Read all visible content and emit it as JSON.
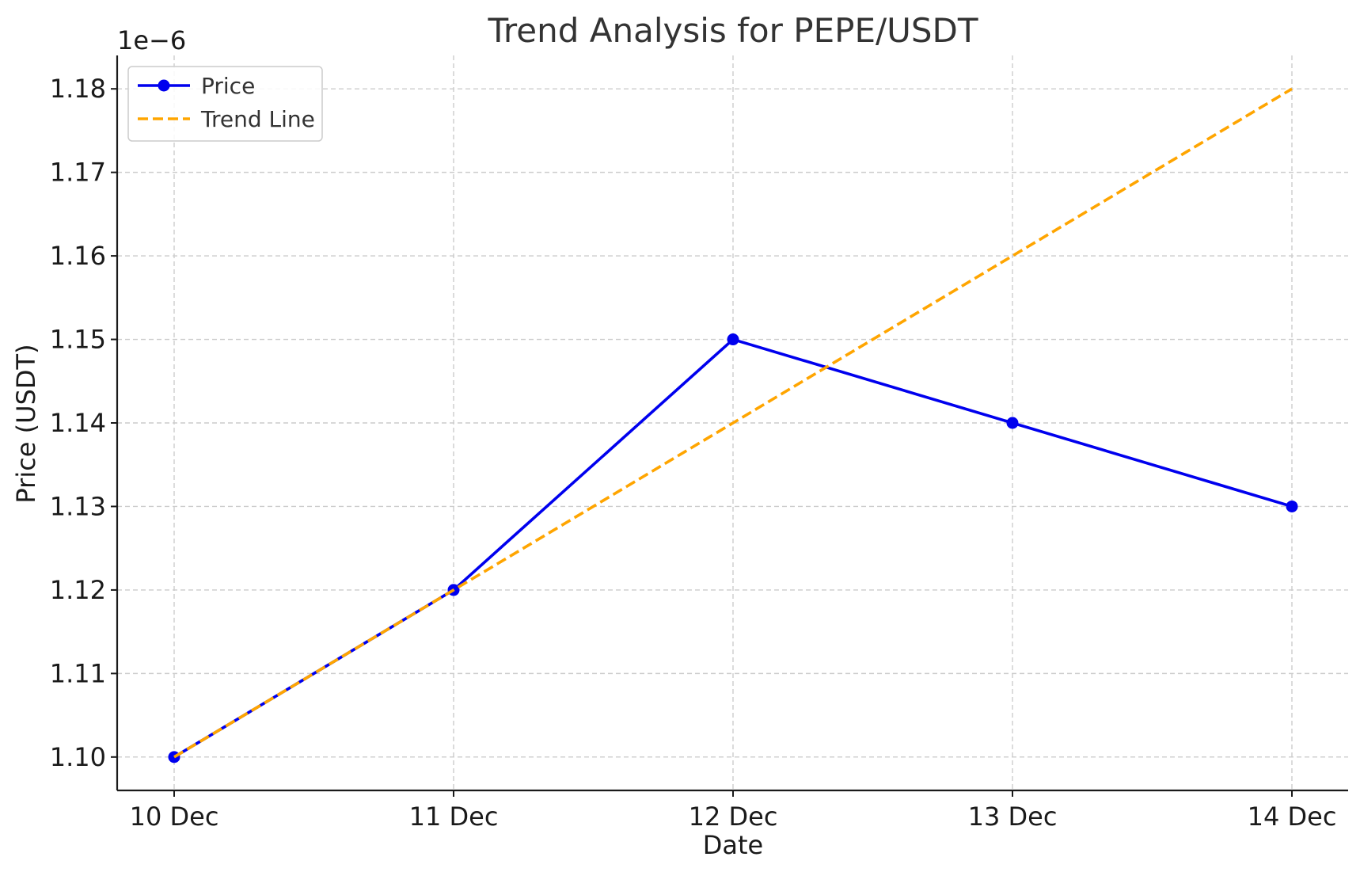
{
  "chart_data": {
    "type": "line",
    "title": "Trend Analysis for PEPE/USDT",
    "xlabel": "Date",
    "ylabel": "Price (USDT)",
    "y_offset_label": "1e−6",
    "categories": [
      "10 Dec",
      "11 Dec",
      "12 Dec",
      "13 Dec",
      "14 Dec"
    ],
    "ylim": [
      1.096,
      1.184
    ],
    "yticks": [
      1.1,
      1.11,
      1.12,
      1.13,
      1.14,
      1.15,
      1.16,
      1.17,
      1.18
    ],
    "ytick_labels": [
      "1.10",
      "1.11",
      "1.12",
      "1.13",
      "1.14",
      "1.15",
      "1.16",
      "1.17",
      "1.18"
    ],
    "grid": true,
    "legend_position": "top-left",
    "series": [
      {
        "name": "Price",
        "values": [
          1.1,
          1.12,
          1.15,
          1.14,
          1.13
        ],
        "color": "#0000ee",
        "style": "solid",
        "markers": true
      },
      {
        "name": "Trend Line",
        "values": [
          1.1,
          1.12,
          1.14,
          1.16,
          1.18
        ],
        "color": "#ffa500",
        "style": "dashed",
        "markers": false
      }
    ]
  }
}
